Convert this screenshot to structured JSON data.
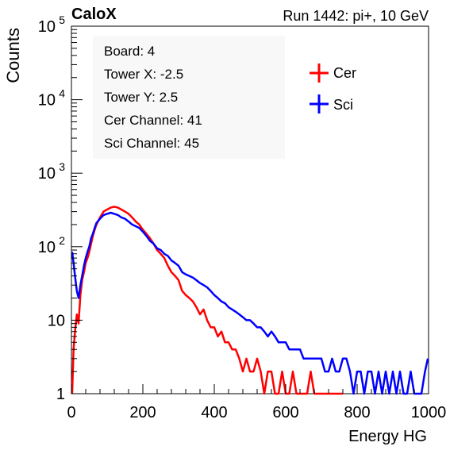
{
  "header": {
    "experiment": "CaloX",
    "run_info": "Run 1442: pi+, 10 GeV"
  },
  "info_box": {
    "lines": [
      "Board: 4",
      "Tower X: -2.5",
      "Tower Y: 2.5",
      "Cer Channel: 41",
      "Sci Channel: 45"
    ]
  },
  "colors": {
    "cer": "#ff0000",
    "sci": "#0000ff",
    "axis": "#000000"
  },
  "chart_data": {
    "type": "line",
    "title": "",
    "xlabel": "Energy HG",
    "ylabel": "Counts",
    "xlim": [
      0,
      1000
    ],
    "ylim": [
      1,
      100000
    ],
    "yscale": "log",
    "grid": false,
    "legend_position": "top-right",
    "x_ticks": [
      {
        "value": 0,
        "label": "0"
      },
      {
        "value": 200,
        "label": "200"
      },
      {
        "value": 400,
        "label": "400"
      },
      {
        "value": 600,
        "label": "600"
      },
      {
        "value": 800,
        "label": "800"
      },
      {
        "value": 1000,
        "label": "1000"
      }
    ],
    "y_ticks": [
      {
        "value": 1,
        "label": "1"
      },
      {
        "value": 10,
        "label": "10"
      },
      {
        "value": 100,
        "label": "10",
        "exp": "2"
      },
      {
        "value": 1000,
        "label": "10",
        "exp": "3"
      },
      {
        "value": 10000,
        "label": "10",
        "exp": "4"
      },
      {
        "value": 100000,
        "label": "10",
        "exp": "5"
      }
    ],
    "series": [
      {
        "name": "Cer",
        "x": [
          2,
          6,
          10,
          15,
          20,
          25,
          30,
          35,
          40,
          45,
          50,
          55,
          60,
          65,
          70,
          80,
          90,
          100,
          110,
          120,
          130,
          140,
          150,
          160,
          170,
          180,
          190,
          200,
          210,
          220,
          230,
          240,
          250,
          260,
          270,
          280,
          290,
          300,
          310,
          320,
          330,
          340,
          350,
          360,
          370,
          380,
          390,
          400,
          410,
          420,
          430,
          440,
          450,
          460,
          470,
          480,
          490,
          500,
          510,
          520,
          530,
          540,
          550,
          560,
          570,
          580,
          590,
          600,
          610,
          620,
          630,
          640,
          650,
          660,
          670,
          680,
          690,
          700,
          710,
          720,
          730,
          740,
          750,
          760
        ],
        "y": [
          1,
          4,
          7,
          12,
          9,
          22,
          35,
          45,
          60,
          70,
          85,
          110,
          140,
          170,
          200,
          250,
          300,
          320,
          340,
          350,
          340,
          320,
          300,
          280,
          250,
          220,
          200,
          170,
          150,
          130,
          110,
          90,
          80,
          70,
          55,
          45,
          40,
          35,
          25,
          22,
          20,
          18,
          15,
          12,
          14,
          10,
          8,
          8,
          6,
          7,
          5,
          5,
          4,
          4,
          3,
          2,
          3,
          2,
          2,
          3,
          2,
          1,
          2,
          2,
          1,
          1,
          2,
          1,
          1,
          2,
          1,
          1,
          1,
          1,
          2,
          1,
          1,
          1,
          1,
          1,
          1,
          1,
          1,
          1
        ]
      },
      {
        "name": "Sci",
        "x": [
          2,
          6,
          10,
          15,
          20,
          25,
          30,
          35,
          40,
          45,
          50,
          55,
          60,
          65,
          70,
          80,
          90,
          100,
          110,
          120,
          130,
          140,
          150,
          160,
          170,
          180,
          190,
          200,
          210,
          220,
          230,
          240,
          250,
          260,
          270,
          280,
          290,
          300,
          310,
          320,
          330,
          340,
          350,
          360,
          370,
          380,
          390,
          400,
          410,
          420,
          430,
          440,
          450,
          460,
          470,
          480,
          490,
          500,
          510,
          520,
          530,
          540,
          550,
          560,
          570,
          580,
          590,
          600,
          610,
          620,
          630,
          640,
          650,
          660,
          670,
          680,
          690,
          700,
          710,
          720,
          730,
          740,
          750,
          760,
          770,
          780,
          790,
          800,
          810,
          820,
          830,
          840,
          850,
          860,
          870,
          880,
          890,
          900,
          910,
          920,
          930,
          940,
          950,
          960,
          970,
          980,
          990,
          998
        ],
        "y": [
          85,
          60,
          40,
          25,
          20,
          30,
          40,
          55,
          70,
          85,
          100,
          130,
          150,
          180,
          210,
          240,
          270,
          280,
          290,
          280,
          270,
          250,
          240,
          220,
          200,
          190,
          180,
          160,
          140,
          120,
          110,
          95,
          90,
          80,
          75,
          65,
          60,
          55,
          45,
          42,
          40,
          38,
          35,
          32,
          30,
          28,
          25,
          22,
          20,
          18,
          17,
          15,
          14,
          13,
          12,
          11,
          10,
          10,
          9,
          8,
          8,
          7,
          6,
          7,
          6,
          5,
          5,
          5,
          4,
          4,
          4,
          4,
          3,
          3,
          3,
          3,
          3,
          3,
          2,
          2,
          3,
          2,
          2,
          3,
          3,
          2,
          1,
          2,
          2,
          1,
          2,
          2,
          1,
          2,
          1,
          2,
          1,
          2,
          1,
          2,
          1,
          1,
          2,
          1,
          1,
          1,
          2,
          3
        ]
      }
    ]
  }
}
